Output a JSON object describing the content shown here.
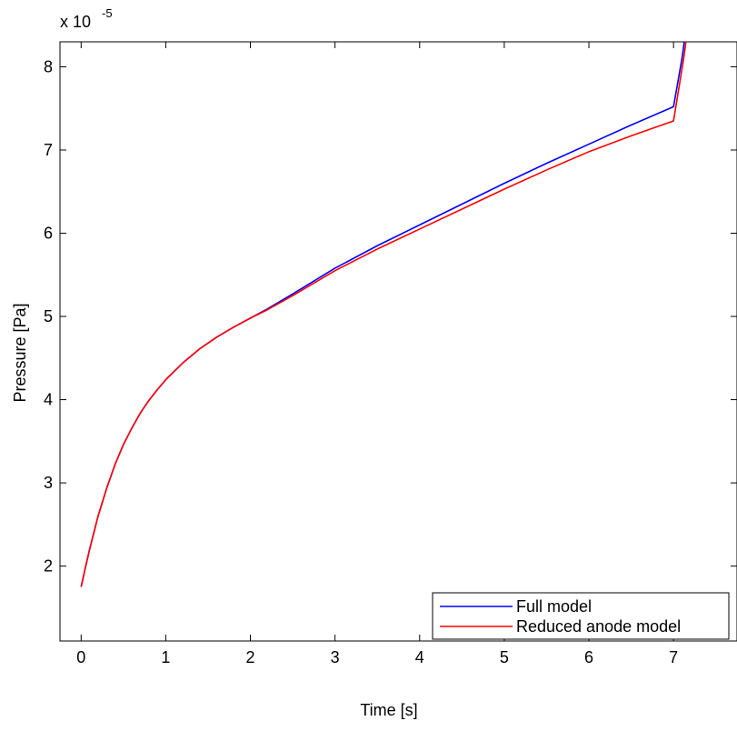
{
  "chart_data": {
    "type": "line",
    "title": "",
    "xlabel": "Time [s]",
    "ylabel": "Pressure [Pa]",
    "y_exponent_label": "x 10",
    "y_exponent_power": "-5",
    "xlim": [
      -0.25,
      7.75
    ],
    "ylim": [
      1.1,
      8.3
    ],
    "x_ticks": [
      0,
      1,
      2,
      3,
      4,
      5,
      6,
      7
    ],
    "x_tick_labels": [
      "0",
      "1",
      "2",
      "3",
      "4",
      "5",
      "6",
      "7"
    ],
    "y_ticks": [
      2,
      3,
      4,
      5,
      6,
      7,
      8
    ],
    "y_tick_labels": [
      "2",
      "3",
      "4",
      "5",
      "6",
      "7",
      "8"
    ],
    "grid": false,
    "legend_position": "bottom-right",
    "series": [
      {
        "name": "Full model",
        "color": "#0000ff",
        "x": [
          0.0,
          0.05,
          0.1,
          0.2,
          0.3,
          0.4,
          0.5,
          0.6,
          0.7,
          0.8,
          0.9,
          1.0,
          1.2,
          1.4,
          1.6,
          1.8,
          2.0,
          2.2,
          2.5,
          3.0,
          3.5,
          4.0,
          4.5,
          5.0,
          5.5,
          6.0,
          6.5,
          7.0,
          7.1,
          7.14
        ],
        "y": [
          1.75,
          1.98,
          2.2,
          2.6,
          2.93,
          3.22,
          3.46,
          3.66,
          3.84,
          3.99,
          4.12,
          4.24,
          4.44,
          4.61,
          4.75,
          4.87,
          4.98,
          5.09,
          5.27,
          5.58,
          5.85,
          6.1,
          6.35,
          6.6,
          6.84,
          7.07,
          7.3,
          7.52,
          8.1,
          8.4
        ]
      },
      {
        "name": "Reduced anode model",
        "color": "#ff0000",
        "x": [
          0.0,
          0.05,
          0.1,
          0.2,
          0.3,
          0.4,
          0.5,
          0.6,
          0.7,
          0.8,
          0.9,
          1.0,
          1.2,
          1.4,
          1.6,
          1.8,
          2.0,
          2.2,
          2.5,
          3.0,
          3.5,
          4.0,
          4.5,
          5.0,
          5.5,
          6.0,
          6.5,
          7.0,
          7.12,
          7.16
        ],
        "y": [
          1.75,
          1.98,
          2.2,
          2.6,
          2.93,
          3.22,
          3.46,
          3.66,
          3.84,
          3.99,
          4.12,
          4.24,
          4.44,
          4.61,
          4.75,
          4.87,
          4.98,
          5.08,
          5.25,
          5.55,
          5.81,
          6.05,
          6.29,
          6.53,
          6.76,
          6.98,
          7.17,
          7.35,
          8.1,
          8.4
        ]
      }
    ]
  }
}
